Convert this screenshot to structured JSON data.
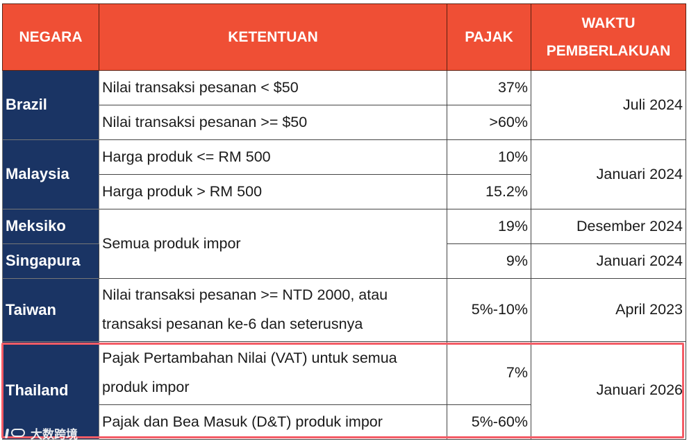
{
  "header": {
    "country": "NEGARA",
    "provision": "KETENTUAN",
    "tax": "PAJAK",
    "time_line1": "WAKTU",
    "time_line2": "PEMBERLAKUAN"
  },
  "rows": {
    "brazil": {
      "country": "Brazil",
      "rule1": "Nilai transaksi pesanan < $50",
      "tax1": "37%",
      "rule2": "Nilai transaksi pesanan >= $50",
      "tax2": ">60%",
      "time": "Juli 2024"
    },
    "malaysia": {
      "country": "Malaysia",
      "rule1": "Harga produk <= RM 500",
      "tax1": "10%",
      "rule2": "Harga produk > RM 500",
      "tax2": "15.2%",
      "time": "Januari 2024"
    },
    "mexico": {
      "country": "Meksiko",
      "tax": "19%",
      "time": "Desember 2024"
    },
    "shared_rule": "Semua produk impor",
    "singapore": {
      "country": "Singapura",
      "tax": "9%",
      "time": "Januari 2024"
    },
    "taiwan": {
      "country": "Taiwan",
      "rule_line1": "Nilai transaksi pesanan >= NTD 2000, atau",
      "rule_line2": "transaksi pesanan ke-6 dan seterusnya",
      "tax": "5%-10%",
      "time": "April 2023"
    },
    "thailand": {
      "country": "Thailand",
      "rule1_line1": "Pajak Pertambahan Nilai (VAT) untuk semua",
      "rule1_line2": "produk impor",
      "tax1": "7%",
      "rule2": "Pajak dan Bea Masuk (D&T) produk impor",
      "tax2": "5%-60%",
      "time": "Januari 2026"
    }
  },
  "watermark": "大数跨境"
}
